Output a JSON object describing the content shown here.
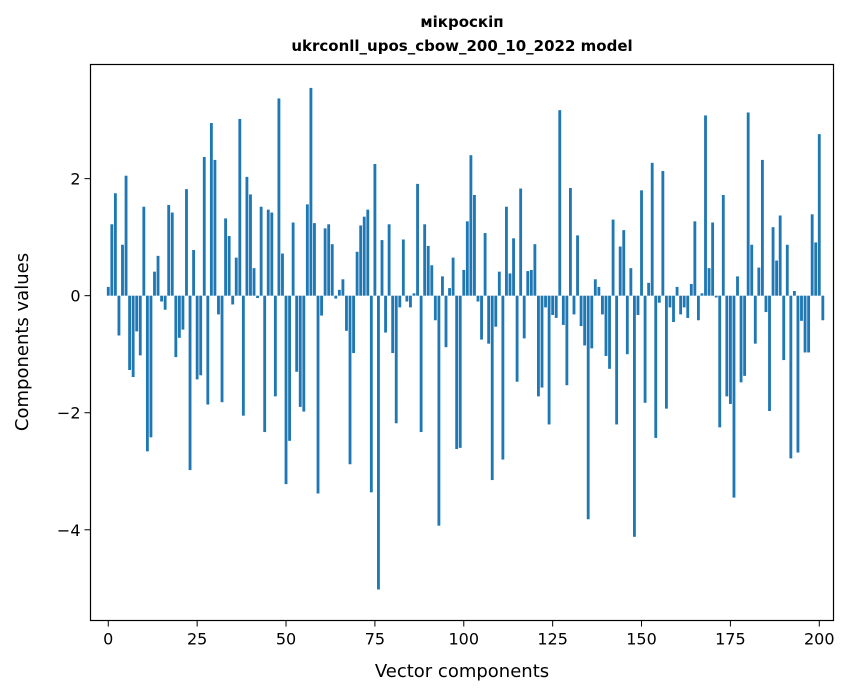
{
  "chart_data": {
    "type": "bar",
    "title": "мікроскіп",
    "subtitle": "ukrconll_upos_cbow_200_10_2022 model",
    "xlabel": "Vector components",
    "ylabel": "Components values",
    "xlim": [
      -5,
      204
    ],
    "ylim": [
      -5.55,
      3.95
    ],
    "xticks": [
      0,
      25,
      50,
      75,
      100,
      125,
      150,
      175,
      200
    ],
    "xtick_labels": [
      "0",
      "25",
      "50",
      "75",
      "100",
      "125",
      "150",
      "175",
      "200"
    ],
    "yticks": [
      -4,
      -2,
      0,
      2
    ],
    "ytick_labels": [
      "−4",
      "−2",
      "0",
      "2"
    ],
    "grid": false,
    "bar_color": "#1f77b4",
    "values": [
      0.15,
      1.22,
      1.75,
      -0.68,
      0.87,
      2.05,
      -1.27,
      -1.39,
      -0.61,
      -1.02,
      1.52,
      -2.66,
      -2.42,
      0.41,
      0.68,
      -0.1,
      -0.24,
      1.55,
      1.42,
      -1.05,
      -0.72,
      -0.58,
      1.82,
      -2.98,
      0.78,
      -1.43,
      -1.36,
      2.37,
      -1.86,
      2.95,
      2.32,
      -0.32,
      -1.82,
      1.32,
      1.02,
      -0.15,
      0.65,
      3.02,
      -2.05,
      2.03,
      1.73,
      0.47,
      -0.04,
      1.52,
      -2.33,
      1.47,
      1.42,
      -1.72,
      3.37,
      0.72,
      -3.22,
      -2.48,
      1.25,
      -1.3,
      -1.9,
      -1.98,
      1.56,
      3.55,
      1.24,
      -3.38,
      -0.34,
      1.15,
      1.22,
      0.88,
      -0.05,
      0.1,
      0.28,
      -0.6,
      -2.88,
      -0.98,
      0.75,
      1.2,
      1.35,
      1.47,
      -3.36,
      2.25,
      -5.02,
      0.95,
      -0.63,
      1.22,
      -0.98,
      -2.18,
      -0.2,
      0.96,
      -0.1,
      -0.2,
      0.04,
      1.91,
      -2.33,
      1.22,
      0.85,
      0.52,
      -0.42,
      -3.93,
      0.33,
      -0.88,
      0.13,
      0.65,
      -2.62,
      -2.6,
      0.44,
      1.27,
      2.4,
      1.72,
      -0.1,
      -0.75,
      1.07,
      -0.82,
      -3.15,
      -0.53,
      0.41,
      -2.8,
      1.52,
      0.38,
      0.98,
      -1.47,
      1.83,
      -0.73,
      0.42,
      0.44,
      0.88,
      -1.72,
      -1.57,
      -0.2,
      -2.2,
      -0.33,
      -0.38,
      3.17,
      -0.5,
      -1.53,
      1.84,
      -0.32,
      1.03,
      -0.52,
      -0.85,
      -3.82,
      -0.9,
      0.28,
      0.15,
      -0.32,
      -1.03,
      -1.25,
      1.3,
      -2.2,
      0.84,
      1.12,
      -1.0,
      0.47,
      -4.12,
      -0.33,
      1.8,
      -1.83,
      0.22,
      2.27,
      -2.43,
      -0.12,
      2.13,
      -1.93,
      -0.2,
      -0.45,
      0.15,
      -0.32,
      -0.2,
      -0.38,
      0.2,
      1.27,
      -0.42,
      0.04,
      3.08,
      0.47,
      1.25,
      -0.03,
      -2.25,
      1.72,
      -1.72,
      -1.85,
      -3.45,
      0.33,
      -1.48,
      -1.37,
      3.13,
      0.87,
      -0.82,
      0.48,
      2.32,
      -0.28,
      -1.97,
      1.17,
      0.6,
      1.37,
      -1.1,
      0.87,
      -2.78,
      0.08,
      -2.68,
      -0.43,
      -0.97,
      -0.97,
      1.39,
      0.91,
      2.76,
      -0.42
    ]
  }
}
